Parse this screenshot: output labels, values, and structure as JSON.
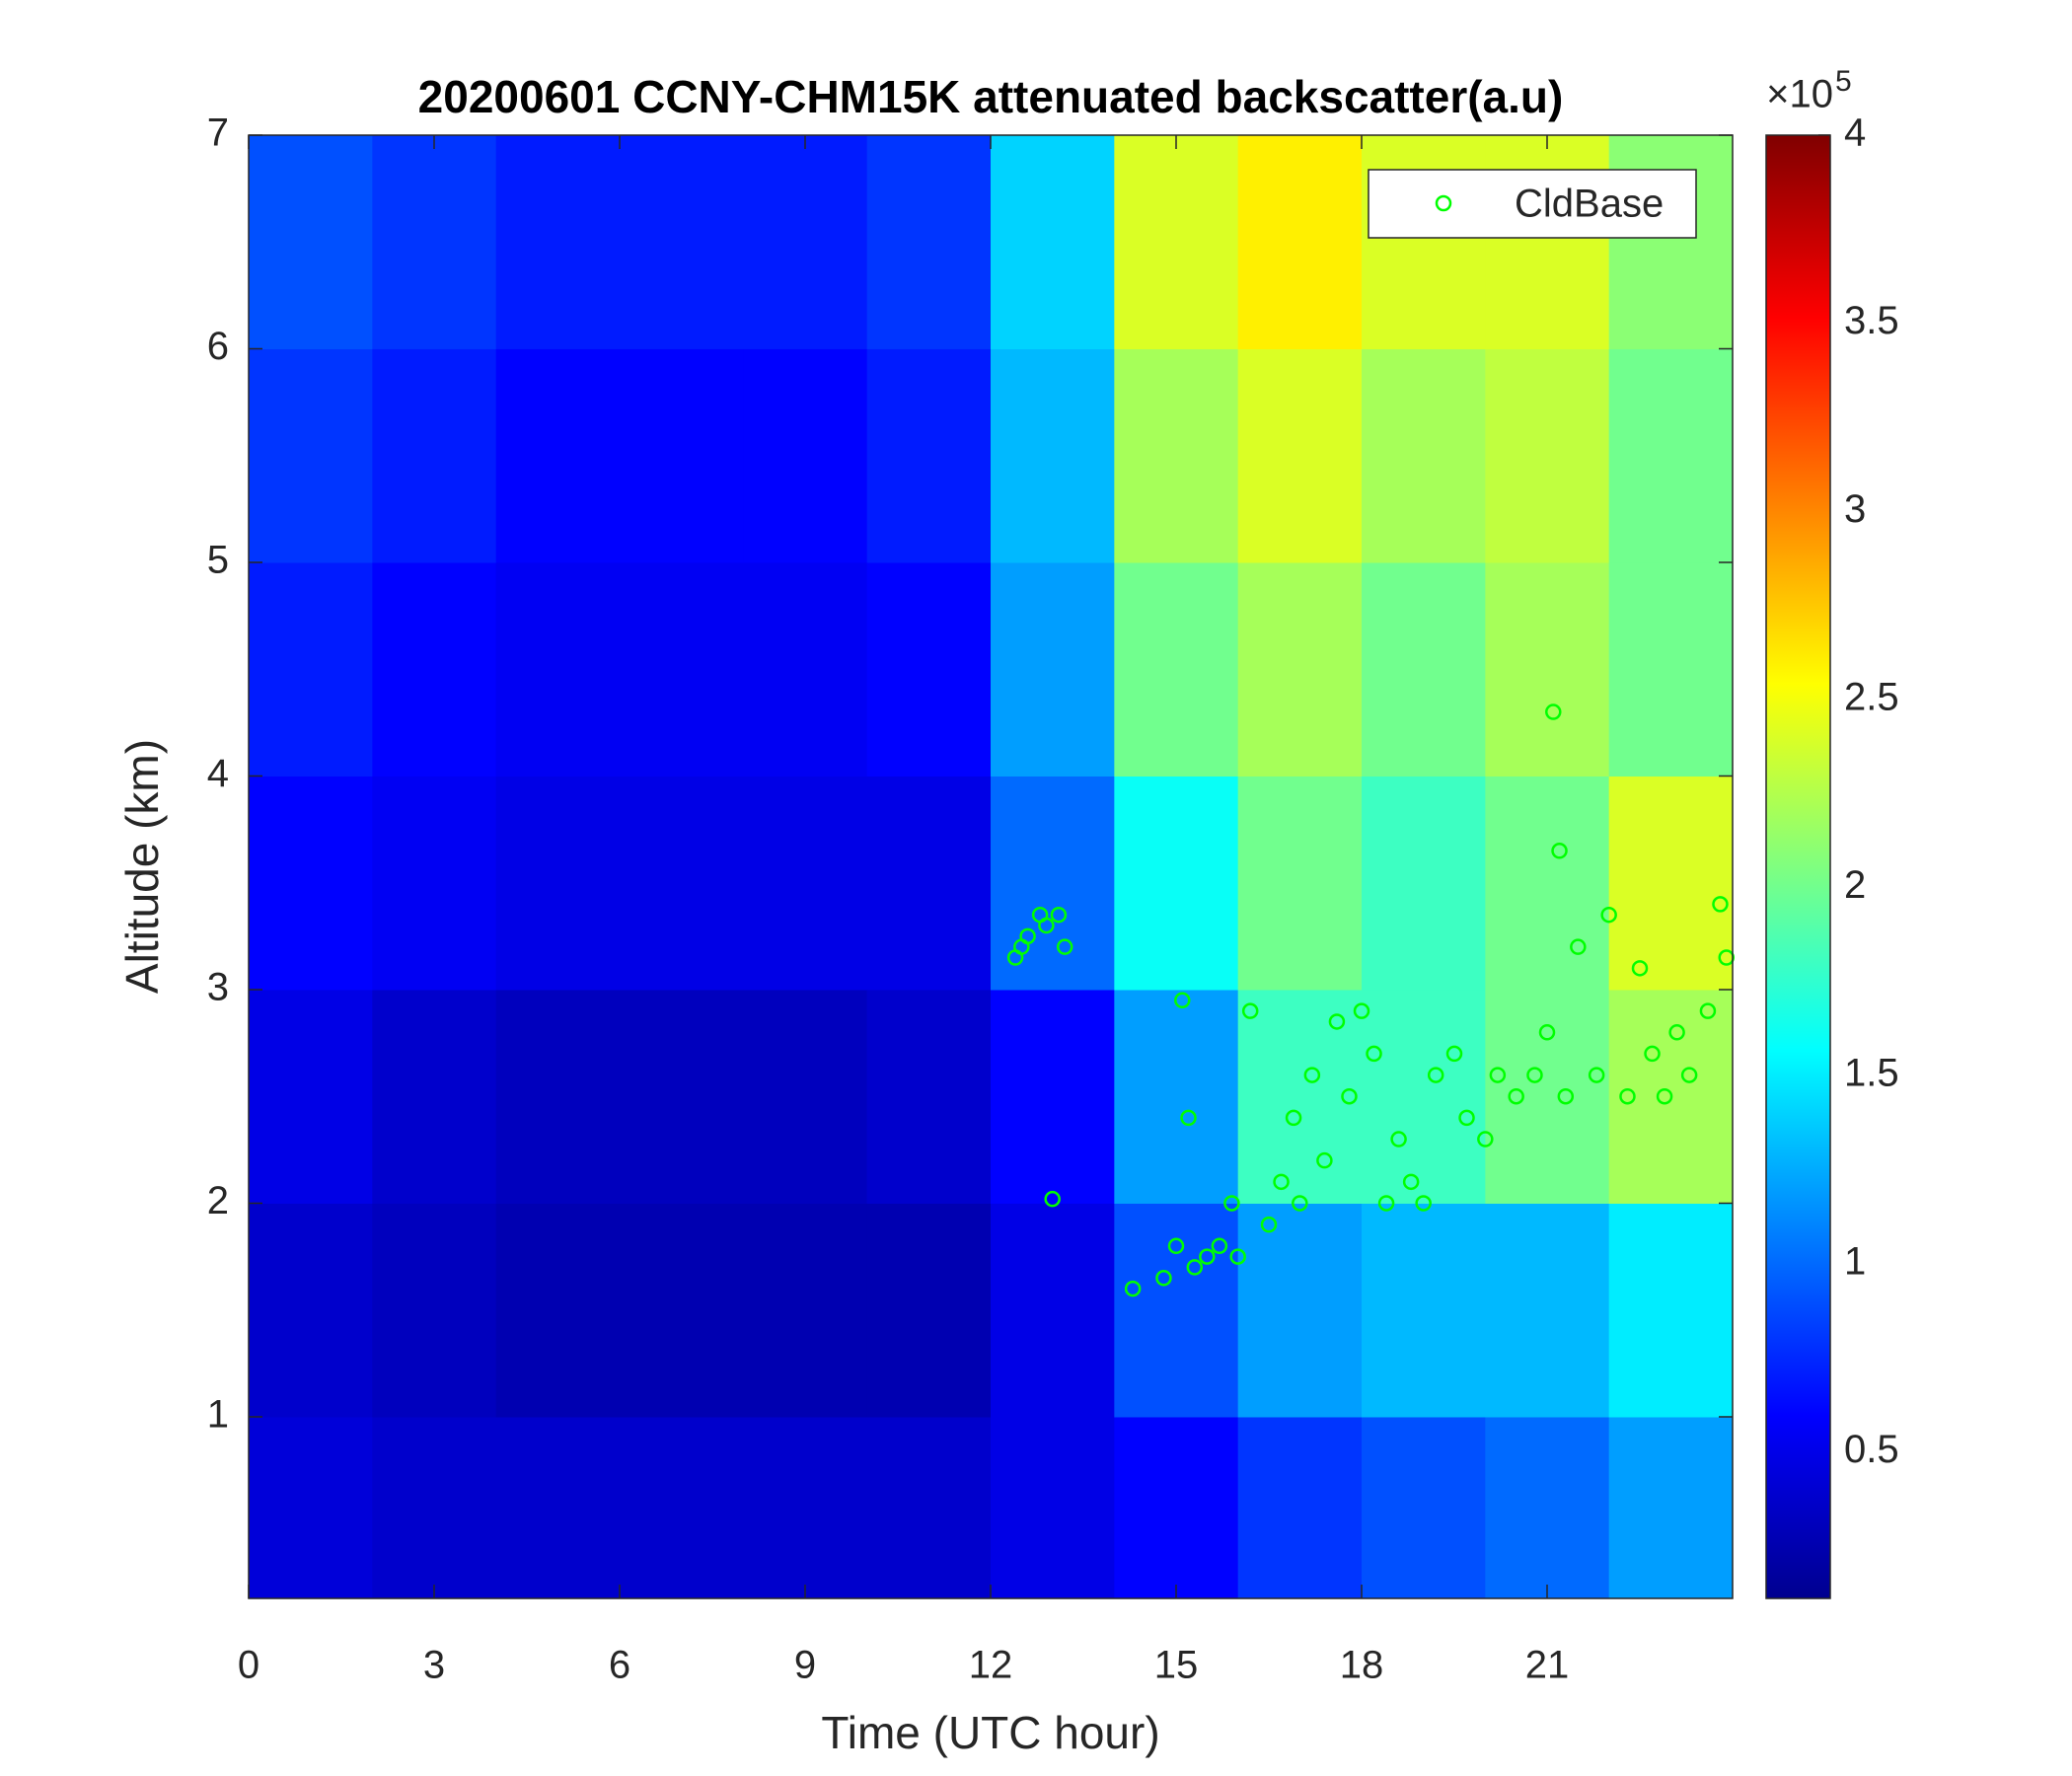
{
  "chart_data": {
    "type": "heatmap",
    "title": "20200601 CCNY-CHM15K attenuated backscatter(a.u)",
    "xlabel": "Time (UTC hour)",
    "ylabel": "Altitude (km)",
    "xlim": [
      0,
      24
    ],
    "ylim": [
      0.15,
      7
    ],
    "xticks": [
      0,
      3,
      6,
      9,
      12,
      15,
      18,
      21
    ],
    "yticks": [
      1,
      2,
      3,
      4,
      5,
      6,
      7
    ],
    "x_edges": [
      0,
      2,
      4,
      6,
      8,
      10,
      12,
      14,
      16,
      18,
      20,
      22,
      24
    ],
    "y_edges": [
      0.15,
      1,
      2,
      3,
      4,
      5,
      6,
      7
    ],
    "z": [
      [
        0.45,
        0.4,
        0.4,
        0.4,
        0.4,
        0.4,
        0.5,
        0.6,
        0.8,
        0.9,
        1.0,
        1.2
      ],
      [
        0.4,
        0.35,
        0.3,
        0.3,
        0.3,
        0.3,
        0.5,
        0.9,
        1.2,
        1.3,
        1.3,
        1.5
      ],
      [
        0.5,
        0.4,
        0.35,
        0.35,
        0.35,
        0.4,
        0.6,
        1.2,
        1.8,
        1.8,
        2.0,
        2.2
      ],
      [
        0.6,
        0.55,
        0.5,
        0.5,
        0.5,
        0.5,
        1.0,
        1.6,
        2.0,
        1.8,
        2.0,
        2.4
      ],
      [
        0.7,
        0.6,
        0.55,
        0.55,
        0.55,
        0.6,
        1.2,
        2.0,
        2.2,
        2.0,
        2.2,
        2.0
      ],
      [
        0.8,
        0.7,
        0.6,
        0.6,
        0.6,
        0.7,
        1.3,
        2.2,
        2.4,
        2.2,
        2.3,
        2.0
      ],
      [
        0.9,
        0.8,
        0.7,
        0.7,
        0.7,
        0.8,
        1.4,
        2.4,
        2.6,
        2.4,
        2.4,
        2.1
      ]
    ],
    "colormap": "jet",
    "clim": [
      0.11,
      4
    ],
    "cticks": [
      0.5,
      1,
      1.5,
      2,
      2.5,
      3,
      3.5,
      4
    ],
    "colorbar_multiplier": {
      "base": "×10",
      "exponent": "5"
    },
    "legend": "top-right",
    "series": [
      {
        "name": "CldBase",
        "type": "scatter",
        "color": "#00ff00",
        "x": [
          12.4,
          12.5,
          12.6,
          12.8,
          12.9,
          13.0,
          13.1,
          13.2,
          14.3,
          14.8,
          15.0,
          15.1,
          15.2,
          15.3,
          15.5,
          15.7,
          15.9,
          16.0,
          16.2,
          16.5,
          16.7,
          16.9,
          17.0,
          17.2,
          17.4,
          17.6,
          17.8,
          18.0,
          18.2,
          18.4,
          18.6,
          18.8,
          19.0,
          19.2,
          19.5,
          19.7,
          20.0,
          20.2,
          20.5,
          20.8,
          21.0,
          21.1,
          21.2,
          21.3,
          21.5,
          21.8,
          22.0,
          22.3,
          22.5,
          22.7,
          22.9,
          23.1,
          23.3,
          23.6,
          23.8,
          23.9
        ],
        "values": [
          3.15,
          3.2,
          3.25,
          3.35,
          3.3,
          2.02,
          3.35,
          3.2,
          1.6,
          1.65,
          1.8,
          2.95,
          2.4,
          1.7,
          1.75,
          1.8,
          2.0,
          1.75,
          2.9,
          1.9,
          2.1,
          2.4,
          2.0,
          2.6,
          2.2,
          2.85,
          2.5,
          2.9,
          2.7,
          2.0,
          2.3,
          2.1,
          2.0,
          2.6,
          2.7,
          2.4,
          2.3,
          2.6,
          2.5,
          2.6,
          2.8,
          4.3,
          3.65,
          2.5,
          3.2,
          2.6,
          3.35,
          2.5,
          3.1,
          2.7,
          2.5,
          2.8,
          2.6,
          2.9,
          3.4,
          3.15
        ]
      }
    ]
  }
}
